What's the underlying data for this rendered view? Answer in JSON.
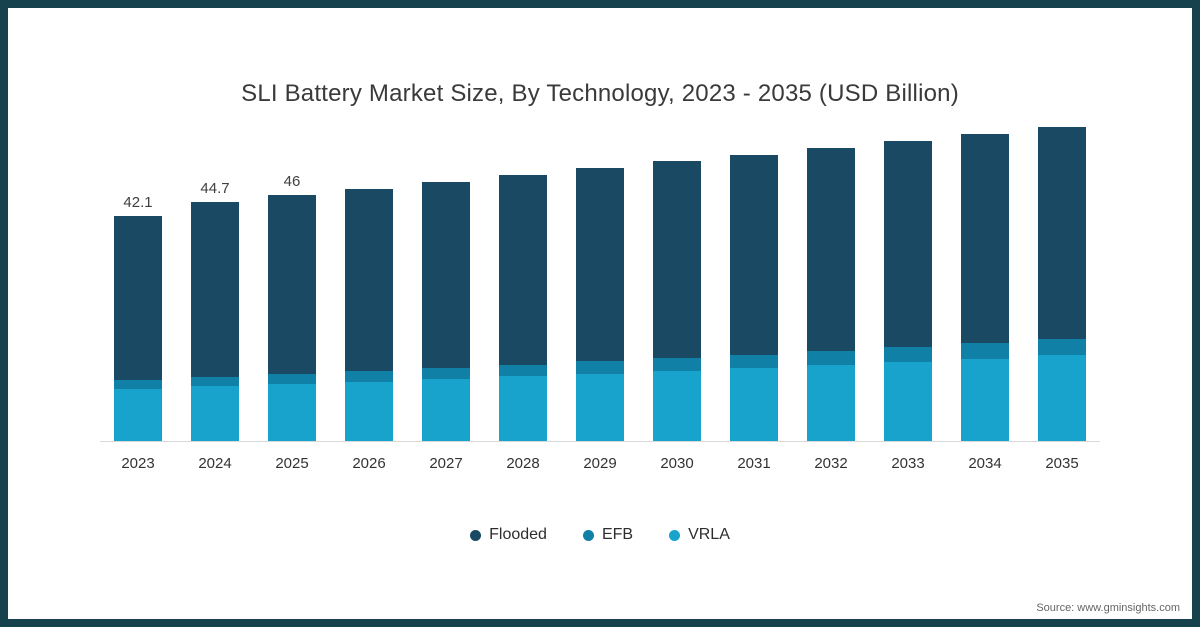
{
  "title": "SLI Battery Market Size, By Technology, 2023 - 2035 (USD Billion)",
  "source": "Source: www.gminsights.com",
  "frame": {
    "border_color": "#16424d"
  },
  "chart_data": {
    "type": "bar",
    "stacked": true,
    "title": "SLI Battery Market Size, By Technology, 2023 - 2035 (USD Billion)",
    "xlabel": "",
    "ylabel": "USD Billion",
    "ylim": [
      0,
      60
    ],
    "grid": false,
    "legend_position": "bottom",
    "categories": [
      "2023",
      "2024",
      "2025",
      "2026",
      "2027",
      "2028",
      "2029",
      "2030",
      "2031",
      "2032",
      "2033",
      "2034",
      "2035"
    ],
    "series": [
      {
        "name": "VRLA",
        "color": "#18a3cc",
        "values": [
          9.8,
          10.2,
          10.6,
          11.1,
          11.6,
          12.1,
          12.6,
          13.1,
          13.6,
          14.2,
          14.8,
          15.4,
          16.0
        ]
      },
      {
        "name": "EFB",
        "color": "#1080a6",
        "values": [
          1.7,
          1.8,
          1.9,
          2.0,
          2.1,
          2.2,
          2.3,
          2.4,
          2.5,
          2.6,
          2.7,
          2.85,
          3.0
        ]
      },
      {
        "name": "Flooded",
        "color": "#1a4a63",
        "values": [
          30.6,
          32.7,
          33.5,
          34.1,
          34.7,
          35.4,
          36.1,
          36.8,
          37.4,
          38.0,
          38.6,
          39.2,
          39.8
        ]
      }
    ],
    "totals": [
      42.1,
      44.7,
      46.0,
      47.2,
      48.4,
      49.7,
      51.0,
      52.3,
      53.5,
      54.8,
      56.1,
      57.45,
      58.8
    ],
    "labels": [
      "42.1",
      "44.7",
      "46",
      "",
      "",
      "",
      "",
      "",
      "",
      "",
      "",
      "",
      ""
    ],
    "legend": [
      "Flooded",
      "EFB",
      "VRLA"
    ]
  }
}
